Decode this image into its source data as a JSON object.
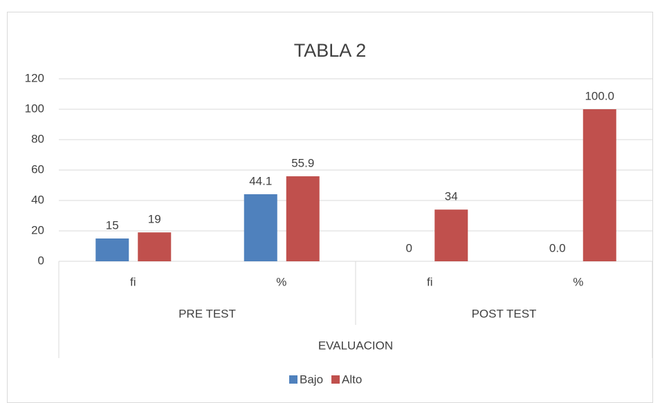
{
  "chart_data": {
    "type": "bar",
    "title": "TABLA  2",
    "categories": [
      "fi",
      "%",
      "fi",
      "%"
    ],
    "category_groups": [
      "PRE TEST",
      "POST TEST"
    ],
    "axis_title": "EVALUACION",
    "series": [
      {
        "name": "Bajo",
        "color": "#4f81bd",
        "values": [
          15,
          44.1,
          0,
          0.0
        ],
        "value_labels": [
          "15",
          "44.1",
          "0",
          "0.0"
        ]
      },
      {
        "name": "Alto",
        "color": "#c0504d",
        "values": [
          19,
          55.9,
          34,
          100.0
        ],
        "value_labels": [
          "19",
          "55.9",
          "34",
          "100.0"
        ]
      }
    ],
    "ylim": [
      0,
      120
    ],
    "yticks": [
      0,
      20,
      40,
      60,
      80,
      100,
      120
    ],
    "grid": true,
    "legend": "bottom"
  }
}
